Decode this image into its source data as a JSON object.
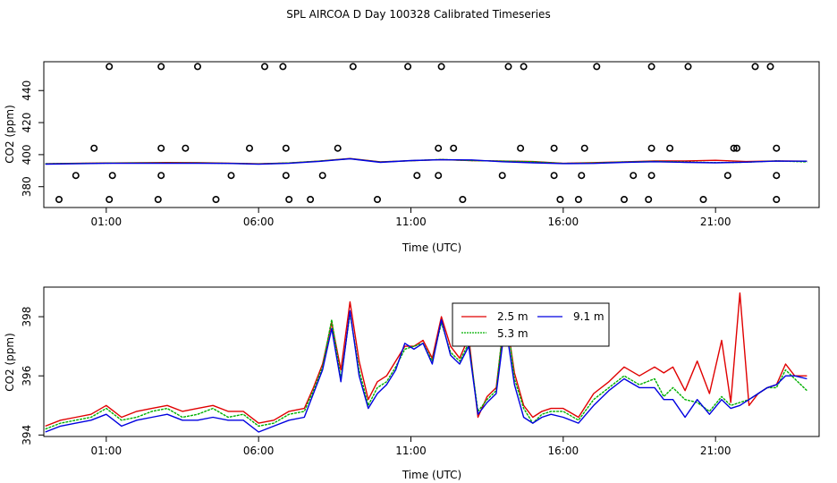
{
  "title": "SPL AIRCOA D  Day 100328  Calibrated Timeseries",
  "colors": {
    "red": "#e00000",
    "green": "#00b000",
    "blue": "#0000e0",
    "black": "#000000"
  },
  "chart_data": [
    {
      "type": "scatter+line",
      "xlabel": "Time (UTC)",
      "ylabel": "CO2 (ppm)",
      "xlim": [
        -1.05,
        24.4
      ],
      "ylim": [
        367,
        458
      ],
      "xticks": [
        1,
        6,
        11,
        16,
        21
      ],
      "xtick_labels": [
        "01:00",
        "06:00",
        "11:00",
        "16:00",
        "21:00"
      ],
      "yticks": [
        380,
        400,
        420,
        440
      ],
      "ytick_labels": [
        "380",
        "400",
        "420",
        "440"
      ],
      "calibration_points": [
        {
          "level": 455,
          "x": [
            1.1,
            2.8,
            4.0,
            6.2,
            6.8,
            9.1,
            10.9,
            12.0,
            14.2,
            14.7,
            17.1,
            18.9,
            20.1,
            22.3,
            22.8
          ]
        },
        {
          "level": 404,
          "x": [
            0.6,
            2.8,
            3.6,
            5.7,
            6.9,
            8.6,
            11.9,
            12.4,
            14.6,
            15.7,
            16.7,
            18.9,
            19.5,
            21.6,
            21.7,
            23.0
          ]
        },
        {
          "level": 387,
          "x": [
            0.0,
            1.2,
            2.8,
            5.1,
            6.9,
            8.1,
            11.2,
            11.9,
            14.0,
            15.7,
            16.6,
            18.3,
            18.9,
            21.4,
            23.0
          ]
        },
        {
          "level": 372,
          "x": [
            -0.55,
            1.1,
            2.7,
            4.6,
            7.0,
            7.7,
            9.9,
            12.7,
            15.9,
            16.5,
            18.0,
            18.8,
            20.6,
            23.0
          ]
        }
      ],
      "series": [
        {
          "name": "2.5 m",
          "color": "red",
          "x": [
            -1,
            0,
            1,
            2,
            3,
            4,
            5,
            6,
            7,
            8,
            9,
            10,
            11,
            12,
            13,
            14,
            15,
            16,
            17,
            18,
            19,
            20,
            21,
            22,
            23,
            24
          ],
          "values": [
            394.3,
            394.6,
            394.8,
            394.9,
            395.1,
            395.0,
            394.7,
            394.3,
            394.8,
            396.0,
            397.6,
            395.5,
            396.2,
            396.9,
            396.3,
            396.0,
            395.7,
            394.6,
            395.0,
            395.5,
            396.1,
            396.1,
            396.5,
            395.7,
            396.1,
            395.9
          ]
        },
        {
          "name": "5.3 m",
          "color": "green",
          "x": [
            -1,
            0,
            1,
            2,
            3,
            4,
            5,
            6,
            7,
            8,
            9,
            10,
            11,
            12,
            13,
            14,
            15,
            16,
            17,
            18,
            19,
            20,
            21,
            22,
            23,
            24
          ],
          "values": [
            394.3,
            394.5,
            394.7,
            394.8,
            394.8,
            394.8,
            394.6,
            394.2,
            394.8,
            396.0,
            397.5,
            395.4,
            396.2,
            397.0,
            396.3,
            396.0,
            395.6,
            394.5,
            394.8,
            395.4,
            395.8,
            395.4,
            395.0,
            395.3,
            396.1,
            395.5
          ]
        },
        {
          "name": "9.1 m",
          "color": "blue",
          "x": [
            -1,
            0,
            1,
            2,
            3,
            4,
            5,
            6,
            7,
            8,
            9,
            10,
            11,
            12,
            13,
            14,
            15,
            16,
            17,
            18,
            19,
            20,
            21,
            22,
            23,
            24
          ],
          "values": [
            394.1,
            394.3,
            394.6,
            394.6,
            394.6,
            394.6,
            394.5,
            394.0,
            394.6,
            395.8,
            397.4,
            395.2,
            396.3,
            396.8,
            396.7,
            395.6,
            394.9,
            394.4,
            394.5,
            395.2,
            395.6,
            395.2,
            394.9,
            395.3,
            396.0,
            395.9
          ]
        }
      ]
    },
    {
      "type": "line",
      "xlabel": "Time (UTC)",
      "ylabel": "CO2 (ppm)",
      "xlim": [
        -1.05,
        24.4
      ],
      "ylim": [
        393.95,
        399.0
      ],
      "xticks": [
        1,
        6,
        11,
        16,
        21
      ],
      "xtick_labels": [
        "01:00",
        "06:00",
        "11:00",
        "16:00",
        "21:00"
      ],
      "yticks": [
        394,
        396,
        398
      ],
      "ytick_labels": [
        "394",
        "396",
        "398"
      ],
      "legend": {
        "position": "top-center",
        "entries": [
          "2.5 m",
          "5.3 m",
          "9.1 m"
        ]
      },
      "series": [
        {
          "name": "2.5 m",
          "color": "red",
          "x": [
            -1.0,
            -0.5,
            0.0,
            0.5,
            1.0,
            1.5,
            2.0,
            2.5,
            3.0,
            3.5,
            4.0,
            4.5,
            5.0,
            5.5,
            6.0,
            6.5,
            7.0,
            7.5,
            7.8,
            8.1,
            8.4,
            8.7,
            9.0,
            9.3,
            9.6,
            9.9,
            10.2,
            10.5,
            10.8,
            11.1,
            11.4,
            11.7,
            12.0,
            12.3,
            12.6,
            12.9,
            13.2,
            13.5,
            13.8,
            14.1,
            14.4,
            14.7,
            15.0,
            15.3,
            15.6,
            16.0,
            16.5,
            17.0,
            17.5,
            18.0,
            18.5,
            19.0,
            19.3,
            19.6,
            20.0,
            20.4,
            20.8,
            21.2,
            21.5,
            21.8,
            22.1,
            22.4,
            22.7,
            23.0,
            23.3,
            23.6,
            24.0
          ],
          "values": [
            394.3,
            394.5,
            394.6,
            394.7,
            395.0,
            394.6,
            394.8,
            394.9,
            395.0,
            394.8,
            394.9,
            395.0,
            394.8,
            394.8,
            394.4,
            394.5,
            394.8,
            394.9,
            395.6,
            396.4,
            397.8,
            396.2,
            398.5,
            396.5,
            395.2,
            395.8,
            396.0,
            396.5,
            397.0,
            397.0,
            397.2,
            396.6,
            398.0,
            397.0,
            396.6,
            397.3,
            394.6,
            395.3,
            395.6,
            398.2,
            396.1,
            395.0,
            394.6,
            394.8,
            394.9,
            394.9,
            394.6,
            395.4,
            395.8,
            396.3,
            396.0,
            396.3,
            396.1,
            396.3,
            395.5,
            396.5,
            395.4,
            397.2,
            395.1,
            398.8,
            395.0,
            395.4,
            395.6,
            395.7,
            396.4,
            396.0,
            396.0
          ]
        },
        {
          "name": "5.3 m",
          "color": "green",
          "x": [
            -1.0,
            -0.5,
            0.0,
            0.5,
            1.0,
            1.5,
            2.0,
            2.5,
            3.0,
            3.5,
            4.0,
            4.5,
            5.0,
            5.5,
            6.0,
            6.5,
            7.0,
            7.5,
            7.8,
            8.1,
            8.4,
            8.7,
            9.0,
            9.3,
            9.6,
            9.9,
            10.2,
            10.5,
            10.8,
            11.1,
            11.4,
            11.7,
            12.0,
            12.3,
            12.6,
            12.9,
            13.2,
            13.5,
            13.8,
            14.1,
            14.4,
            14.7,
            15.0,
            15.3,
            15.6,
            16.0,
            16.5,
            17.0,
            17.5,
            18.0,
            18.5,
            19.0,
            19.3,
            19.6,
            20.0,
            20.4,
            20.8,
            21.2,
            21.5,
            21.8,
            22.1,
            22.4,
            22.7,
            23.0,
            23.3,
            23.6,
            24.0
          ],
          "values": [
            394.2,
            394.4,
            394.5,
            394.6,
            394.9,
            394.5,
            394.6,
            394.8,
            394.9,
            394.6,
            394.7,
            394.9,
            394.6,
            394.7,
            394.3,
            394.4,
            394.7,
            394.8,
            395.5,
            396.3,
            397.9,
            395.9,
            398.1,
            396.2,
            395.0,
            395.6,
            395.8,
            396.3,
            396.9,
            397.0,
            397.1,
            396.5,
            397.8,
            396.8,
            396.5,
            397.1,
            394.8,
            395.2,
            395.5,
            398.4,
            395.9,
            394.9,
            394.4,
            394.7,
            394.8,
            394.8,
            394.5,
            395.2,
            395.6,
            396.0,
            395.7,
            395.9,
            395.3,
            395.6,
            395.2,
            395.1,
            394.8,
            395.3,
            395.0,
            395.1,
            395.2,
            395.4,
            395.6,
            395.6,
            396.2,
            395.9,
            395.5
          ]
        },
        {
          "name": "9.1 m",
          "color": "blue",
          "x": [
            -1.0,
            -0.5,
            0.0,
            0.5,
            1.0,
            1.5,
            2.0,
            2.5,
            3.0,
            3.5,
            4.0,
            4.5,
            5.0,
            5.5,
            6.0,
            6.5,
            7.0,
            7.5,
            7.8,
            8.1,
            8.4,
            8.7,
            9.0,
            9.3,
            9.6,
            9.9,
            10.2,
            10.5,
            10.8,
            11.1,
            11.4,
            11.7,
            12.0,
            12.3,
            12.6,
            12.9,
            13.2,
            13.5,
            13.8,
            14.1,
            14.4,
            14.7,
            15.0,
            15.3,
            15.6,
            16.0,
            16.5,
            17.0,
            17.5,
            18.0,
            18.5,
            19.0,
            19.3,
            19.6,
            20.0,
            20.4,
            20.8,
            21.2,
            21.5,
            21.8,
            22.1,
            22.4,
            22.7,
            23.0,
            23.3,
            23.6,
            24.0
          ],
          "values": [
            394.1,
            394.3,
            394.4,
            394.5,
            394.7,
            394.3,
            394.5,
            394.6,
            394.7,
            394.5,
            394.5,
            394.6,
            394.5,
            394.5,
            394.1,
            394.3,
            394.5,
            394.6,
            395.4,
            396.2,
            397.6,
            395.8,
            398.2,
            396.0,
            394.9,
            395.4,
            395.7,
            396.2,
            397.1,
            396.9,
            397.1,
            396.4,
            397.9,
            396.7,
            396.4,
            397.0,
            394.7,
            395.1,
            395.4,
            397.8,
            395.7,
            394.6,
            394.4,
            394.6,
            394.7,
            394.6,
            394.4,
            395.0,
            395.5,
            395.9,
            395.6,
            395.6,
            395.2,
            395.2,
            394.6,
            395.2,
            394.7,
            395.2,
            394.9,
            395.0,
            395.2,
            395.4,
            395.6,
            395.7,
            396.0,
            396.0,
            395.9
          ]
        }
      ]
    }
  ]
}
